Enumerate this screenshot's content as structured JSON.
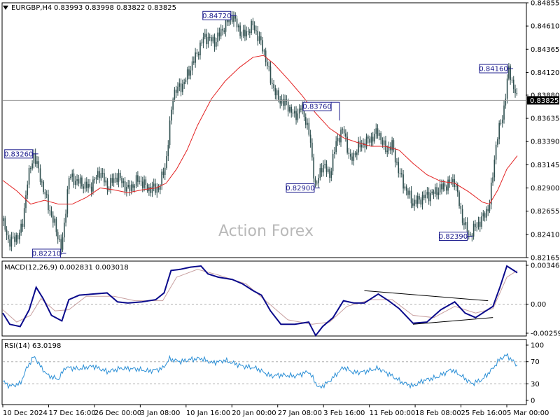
{
  "header": {
    "symbol_text": "EURGBP,H4",
    "ohlc_text": "0.83993 0.83998 0.83822 0.83825"
  },
  "watermark": "Action Forex",
  "colors": {
    "candles": "#2f4f4f",
    "ma": "#e32222",
    "macd": "#0a0a8c",
    "signal": "#c8a0a0",
    "rsi": "#2b8fd6",
    "label_box": "#1a1a8c",
    "current_price_bg": "#000000"
  },
  "chart_data": [
    {
      "type": "candlestick",
      "title": "EURGBP,H4",
      "ylim": [
        0.82165,
        0.84855
      ],
      "y_ticks": [
        "0.84855",
        "0.84610",
        "0.84365",
        "0.84120",
        "0.83880",
        "0.83635",
        "0.83390",
        "0.83145",
        "0.82900",
        "0.82655",
        "0.82410",
        "0.82165"
      ],
      "current_price": 0.83825,
      "current_price_label": "0.83825",
      "x_tick_labels": [
        "10 Dec 2024",
        "17 Dec 16:00",
        "26 Dec 00:00",
        "3 Jan 08:00",
        "10 Jan 16:00",
        "20 Jan 00:00",
        "27 Jan 08:00",
        "3 Feb 16:00",
        "11 Feb 00:00",
        "18 Feb 08:00",
        "25 Feb 16:00",
        "5 Mar 00:00"
      ],
      "price_path": [
        [
          0,
          0.8255
        ],
        [
          8,
          0.8234
        ],
        [
          18,
          0.8236
        ],
        [
          28,
          0.8248
        ],
        [
          35,
          0.8296
        ],
        [
          45,
          0.8326
        ],
        [
          55,
          0.8298
        ],
        [
          65,
          0.8272
        ],
        [
          75,
          0.825
        ],
        [
          85,
          0.8225
        ],
        [
          95,
          0.8302
        ],
        [
          110,
          0.8296
        ],
        [
          125,
          0.829
        ],
        [
          140,
          0.8308
        ],
        [
          150,
          0.8291
        ],
        [
          165,
          0.8303
        ],
        [
          180,
          0.8288
        ],
        [
          195,
          0.8299
        ],
        [
          210,
          0.8289
        ],
        [
          225,
          0.829
        ],
        [
          235,
          0.8318
        ],
        [
          245,
          0.839
        ],
        [
          260,
          0.84
        ],
        [
          275,
          0.8425
        ],
        [
          290,
          0.845
        ],
        [
          305,
          0.8444
        ],
        [
          318,
          0.846
        ],
        [
          330,
          0.8472
        ],
        [
          345,
          0.845
        ],
        [
          360,
          0.8462
        ],
        [
          375,
          0.8436
        ],
        [
          385,
          0.8405
        ],
        [
          395,
          0.8385
        ],
        [
          410,
          0.8377
        ],
        [
          420,
          0.8365
        ],
        [
          430,
          0.8376
        ],
        [
          440,
          0.835
        ],
        [
          450,
          0.829
        ],
        [
          460,
          0.8316
        ],
        [
          470,
          0.8303
        ],
        [
          480,
          0.834
        ],
        [
          490,
          0.8352
        ],
        [
          500,
          0.8318
        ],
        [
          510,
          0.8332
        ],
        [
          520,
          0.8338
        ],
        [
          530,
          0.8342
        ],
        [
          540,
          0.835
        ],
        [
          550,
          0.833
        ],
        [
          560,
          0.8335
        ],
        [
          570,
          0.8306
        ],
        [
          580,
          0.8288
        ],
        [
          590,
          0.8274
        ],
        [
          600,
          0.8278
        ],
        [
          610,
          0.8282
        ],
        [
          620,
          0.8285
        ],
        [
          630,
          0.829
        ],
        [
          640,
          0.8294
        ],
        [
          650,
          0.8298
        ],
        [
          660,
          0.826
        ],
        [
          670,
          0.8239
        ],
        [
          680,
          0.8249
        ],
        [
          690,
          0.8258
        ],
        [
          700,
          0.8272
        ],
        [
          710,
          0.834
        ],
        [
          720,
          0.837
        ],
        [
          728,
          0.8416
        ],
        [
          734,
          0.8398
        ],
        [
          740,
          0.8382
        ]
      ],
      "ma_path": [
        [
          0,
          0.8298
        ],
        [
          20,
          0.8287
        ],
        [
          40,
          0.8273
        ],
        [
          60,
          0.8277
        ],
        [
          80,
          0.8273
        ],
        [
          100,
          0.8273
        ],
        [
          120,
          0.828
        ],
        [
          140,
          0.829
        ],
        [
          160,
          0.8288
        ],
        [
          180,
          0.8285
        ],
        [
          200,
          0.8288
        ],
        [
          220,
          0.829
        ],
        [
          235,
          0.8295
        ],
        [
          250,
          0.831
        ],
        [
          265,
          0.833
        ],
        [
          280,
          0.8356
        ],
        [
          300,
          0.8384
        ],
        [
          320,
          0.8403
        ],
        [
          340,
          0.8417
        ],
        [
          360,
          0.8428
        ],
        [
          375,
          0.843
        ],
        [
          390,
          0.8421
        ],
        [
          410,
          0.8405
        ],
        [
          430,
          0.8388
        ],
        [
          450,
          0.8369
        ],
        [
          470,
          0.8353
        ],
        [
          490,
          0.8343
        ],
        [
          510,
          0.8338
        ],
        [
          530,
          0.8334
        ],
        [
          550,
          0.8334
        ],
        [
          570,
          0.833
        ],
        [
          590,
          0.8316
        ],
        [
          610,
          0.8304
        ],
        [
          630,
          0.8297
        ],
        [
          650,
          0.8295
        ],
        [
          670,
          0.8286
        ],
        [
          690,
          0.8275
        ],
        [
          700,
          0.8273
        ],
        [
          712,
          0.8288
        ],
        [
          725,
          0.831
        ],
        [
          740,
          0.8324
        ]
      ],
      "annotations": [
        {
          "text": "0.84720",
          "x": 330,
          "y": 0.8472,
          "anchor": "left"
        },
        {
          "text": "0.84160",
          "x": 728,
          "y": 0.8416,
          "anchor": "left"
        },
        {
          "text": "0.83760",
          "x": 430,
          "y": 0.8376,
          "anchor": "right"
        },
        {
          "text": "0.83260",
          "x": 45,
          "y": 0.8326,
          "anchor": "left"
        },
        {
          "text": "0.82900",
          "x": 450,
          "y": 0.829,
          "anchor": "left"
        },
        {
          "text": "0.82390",
          "x": 670,
          "y": 0.8239,
          "anchor": "left"
        },
        {
          "text": "0.82210",
          "x": 85,
          "y": 0.8221,
          "anchor": "left"
        }
      ]
    },
    {
      "type": "line",
      "title": "MACD(12,26,9) 0.002831 0.003018",
      "ylim": [
        -0.002593,
        0.003462
      ],
      "y_ticks": [
        "0.003462",
        "0.00",
        "-0.002593"
      ],
      "macd": [
        [
          0,
          -0.0008
        ],
        [
          10,
          -0.0018
        ],
        [
          25,
          -0.002
        ],
        [
          38,
          -0.0005
        ],
        [
          48,
          0.0015
        ],
        [
          58,
          0.0005
        ],
        [
          70,
          -0.001
        ],
        [
          85,
          -0.0015
        ],
        [
          95,
          0.0004
        ],
        [
          110,
          0.0008
        ],
        [
          130,
          0.0009
        ],
        [
          150,
          0.001
        ],
        [
          165,
          0.0002
        ],
        [
          180,
          0.0001
        ],
        [
          200,
          0.0002
        ],
        [
          220,
          0.0004
        ],
        [
          232,
          0.001
        ],
        [
          242,
          0.003
        ],
        [
          255,
          0.0031
        ],
        [
          270,
          0.0033
        ],
        [
          285,
          0.0034
        ],
        [
          295,
          0.0027
        ],
        [
          310,
          0.0024
        ],
        [
          330,
          0.0022
        ],
        [
          345,
          0.0018
        ],
        [
          360,
          0.0012
        ],
        [
          372,
          0.0008
        ],
        [
          385,
          -0.0006
        ],
        [
          400,
          -0.0018
        ],
        [
          420,
          -0.0018
        ],
        [
          440,
          -0.0016
        ],
        [
          450,
          -0.0028
        ],
        [
          460,
          -0.002
        ],
        [
          475,
          -0.0012
        ],
        [
          490,
          0.0003
        ],
        [
          505,
          0.0001
        ],
        [
          520,
          0.0001
        ],
        [
          540,
          0.0009
        ],
        [
          555,
          0.0003
        ],
        [
          570,
          -0.0004
        ],
        [
          590,
          -0.0017
        ],
        [
          610,
          -0.0016
        ],
        [
          630,
          -0.0005
        ],
        [
          650,
          0.0002
        ],
        [
          665,
          -0.0008
        ],
        [
          680,
          -0.0012
        ],
        [
          695,
          -0.0006
        ],
        [
          705,
          -0.0002
        ],
        [
          715,
          0.0015
        ],
        [
          725,
          0.0034
        ],
        [
          740,
          0.0028
        ]
      ],
      "signal": [
        [
          0,
          -0.0005
        ],
        [
          20,
          -0.0016
        ],
        [
          40,
          -0.001
        ],
        [
          55,
          0.0005
        ],
        [
          75,
          -0.0006
        ],
        [
          95,
          -0.0005
        ],
        [
          120,
          0.0007
        ],
        [
          160,
          0.0007
        ],
        [
          190,
          0.0003
        ],
        [
          230,
          0.0003
        ],
        [
          250,
          0.0024
        ],
        [
          280,
          0.0031
        ],
        [
          310,
          0.0026
        ],
        [
          350,
          0.0018
        ],
        [
          380,
          0.0002
        ],
        [
          410,
          -0.0014
        ],
        [
          445,
          -0.0018
        ],
        [
          470,
          -0.0016
        ],
        [
          495,
          -0.0002
        ],
        [
          530,
          0.0004
        ],
        [
          560,
          0.0004
        ],
        [
          590,
          -0.001
        ],
        [
          620,
          -0.0012
        ],
        [
          650,
          -0.0002
        ],
        [
          680,
          -0.0008
        ],
        [
          705,
          -0.0004
        ],
        [
          725,
          0.0024
        ],
        [
          740,
          0.003
        ]
      ],
      "trendlines": [
        [
          [
            520,
            0.0012
          ],
          [
            698,
            0.0003
          ]
        ],
        [
          [
            590,
            -0.0018
          ],
          [
            705,
            -0.0012
          ]
        ]
      ]
    },
    {
      "type": "line",
      "title": "RSI(14) 63.0198",
      "ylim": [
        0,
        100
      ],
      "y_ticks": [
        "100",
        "70",
        "30",
        "0"
      ],
      "levels": [
        70,
        30
      ],
      "values": [
        [
          0,
          34
        ],
        [
          10,
          26
        ],
        [
          25,
          30
        ],
        [
          35,
          60
        ],
        [
          45,
          80
        ],
        [
          55,
          60
        ],
        [
          65,
          45
        ],
        [
          80,
          38
        ],
        [
          90,
          60
        ],
        [
          110,
          57
        ],
        [
          130,
          62
        ],
        [
          150,
          52
        ],
        [
          170,
          58
        ],
        [
          190,
          57
        ],
        [
          210,
          53
        ],
        [
          230,
          58
        ],
        [
          240,
          75
        ],
        [
          255,
          70
        ],
        [
          270,
          74
        ],
        [
          285,
          76
        ],
        [
          300,
          68
        ],
        [
          320,
          72
        ],
        [
          345,
          62
        ],
        [
          365,
          58
        ],
        [
          385,
          44
        ],
        [
          400,
          46
        ],
        [
          420,
          44
        ],
        [
          440,
          52
        ],
        [
          455,
          22
        ],
        [
          470,
          35
        ],
        [
          490,
          60
        ],
        [
          505,
          50
        ],
        [
          520,
          52
        ],
        [
          540,
          58
        ],
        [
          555,
          48
        ],
        [
          575,
          32
        ],
        [
          590,
          26
        ],
        [
          605,
          36
        ],
        [
          625,
          42
        ],
        [
          645,
          56
        ],
        [
          660,
          44
        ],
        [
          675,
          30
        ],
        [
          690,
          38
        ],
        [
          705,
          58
        ],
        [
          715,
          75
        ],
        [
          725,
          82
        ],
        [
          740,
          63
        ]
      ]
    }
  ]
}
